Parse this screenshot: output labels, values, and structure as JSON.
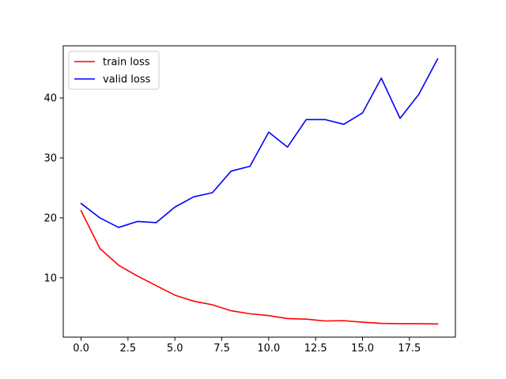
{
  "chart_data": {
    "type": "line",
    "title": "",
    "xlabel": "",
    "ylabel": "",
    "x": [
      0,
      1,
      2,
      3,
      4,
      5,
      6,
      7,
      8,
      9,
      10,
      11,
      12,
      13,
      14,
      15,
      16,
      17,
      18,
      19
    ],
    "series": [
      {
        "name": "train loss",
        "color": "#ff0000",
        "values": [
          21.2,
          14.9,
          12.1,
          10.3,
          8.7,
          7.1,
          6.1,
          5.5,
          4.5,
          4.0,
          3.7,
          3.2,
          3.1,
          2.8,
          2.85,
          2.6,
          2.4,
          2.35,
          2.35,
          2.3
        ]
      },
      {
        "name": "valid loss",
        "color": "#0000ff",
        "values": [
          22.4,
          20.0,
          18.4,
          19.4,
          19.2,
          21.8,
          23.5,
          24.2,
          27.8,
          28.6,
          34.3,
          31.8,
          36.4,
          36.4,
          35.6,
          37.5,
          43.3,
          36.6,
          40.6,
          46.5
        ]
      }
    ],
    "xlim": [
      -0.95,
      19.95
    ],
    "ylim": [
      0.1,
      48.7
    ],
    "x_ticks": [
      0.0,
      2.5,
      5.0,
      7.5,
      10.0,
      12.5,
      15.0,
      17.5
    ],
    "x_tick_labels": [
      "0.0",
      "2.5",
      "5.0",
      "7.5",
      "10.0",
      "12.5",
      "15.0",
      "17.5"
    ],
    "y_ticks": [
      10,
      20,
      30,
      40
    ],
    "y_tick_labels": [
      "10",
      "20",
      "30",
      "40"
    ],
    "grid": false,
    "legend_position": "upper-left"
  }
}
